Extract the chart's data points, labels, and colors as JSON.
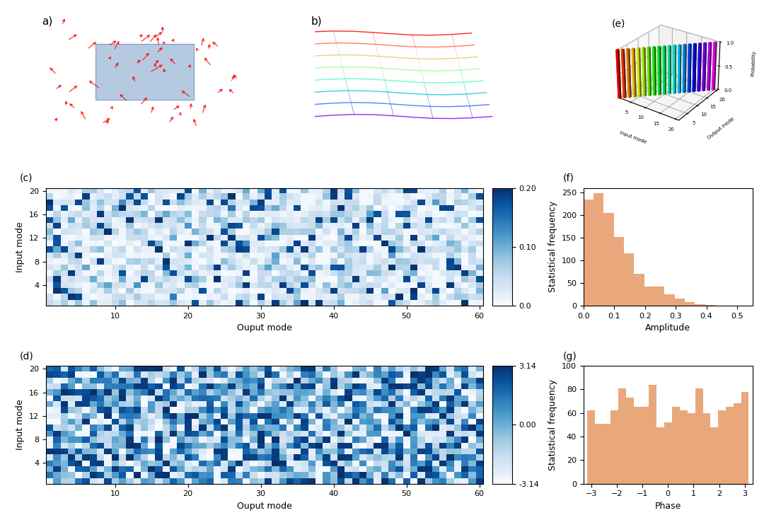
{
  "amplitude_bars": [
    235,
    248,
    205,
    152,
    115,
    70,
    42,
    42,
    25,
    15,
    8,
    3,
    1,
    0.5,
    0.2,
    0.1
  ],
  "amplitude_edges": [
    0.0,
    0.033,
    0.066,
    0.099,
    0.132,
    0.165,
    0.198,
    0.231,
    0.264,
    0.297,
    0.33,
    0.363,
    0.396,
    0.429,
    0.462,
    0.495,
    0.528
  ],
  "phase_bars": [
    62,
    51,
    51,
    62,
    81,
    73,
    65,
    65,
    84,
    48,
    52,
    65,
    62,
    60,
    81,
    60,
    48,
    62,
    65,
    68,
    78
  ],
  "phase_edges": [
    -3.14,
    -2.84,
    -2.54,
    -2.24,
    -1.94,
    -1.64,
    -1.34,
    -1.04,
    -0.74,
    -0.44,
    -0.14,
    0.16,
    0.46,
    0.76,
    1.06,
    1.36,
    1.66,
    1.96,
    2.26,
    2.56,
    2.86,
    3.14
  ],
  "bar_color": "#e8a87c",
  "colormap_c": "Blues",
  "colormap_d": "Blues",
  "c_vmin": 0.0,
  "c_vmax": 0.2,
  "d_vmin": -3.14,
  "d_vmax": 3.14,
  "heatmap_rows": 20,
  "heatmap_cols": 60,
  "panel_labels": [
    "a)",
    "b)",
    "(c)",
    "(d)",
    "(e)",
    "(f)",
    "(g)"
  ],
  "xlabel_cd": "Ouput mode",
  "ylabel_cd": "Input mode",
  "xlabel_f": "Amplitude",
  "ylabel_f": "Statistical frequency",
  "xlabel_g": "Phase",
  "ylabel_g": "Statistical frequency",
  "c_cbar_ticks": [
    0.0,
    0.1,
    0.2
  ],
  "c_cbar_labels": [
    "0.0",
    "0.10",
    "0.20"
  ],
  "d_cbar_ticks": [
    -3.14,
    0.0,
    3.14
  ],
  "d_cbar_labels": [
    "-3.14",
    "0.00",
    "3.14"
  ],
  "f_ylim": [
    0,
    260
  ],
  "f_xlim": [
    0.0,
    0.55
  ],
  "g_ylim": [
    0,
    100
  ],
  "g_xlim": [
    -3.3,
    3.3
  ],
  "fig_bg": "#ffffff",
  "e_n_modes": 20
}
